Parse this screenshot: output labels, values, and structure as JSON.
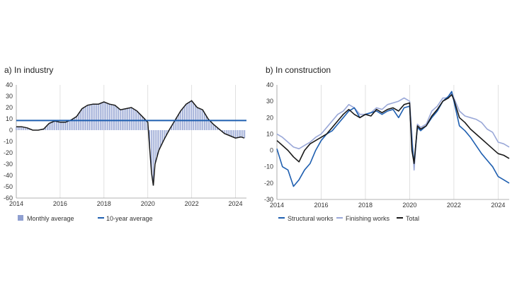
{
  "colors": {
    "bar_fill": "#8f9fd0",
    "avg_line": "#1f5fb0",
    "total_line": "#1a1a1a",
    "structural_line": "#1f5fb0",
    "finishing_line": "#9aa8d8",
    "axis": "#9a9a9a"
  },
  "chart_data": [
    {
      "type": "bar",
      "title": "a)  In industry",
      "xlim": [
        2014,
        2024.5
      ],
      "ylim": [
        -60,
        40
      ],
      "yticks": [
        "40",
        "30",
        "20",
        "10",
        "0",
        "-10",
        "-20",
        "-30",
        "-40",
        "-50",
        "-60"
      ],
      "xticks": [
        "2014",
        "2016",
        "2018",
        "2020",
        "2022",
        "2024"
      ],
      "grid": "vertical",
      "legend": [
        "Monthly average",
        "10-year average"
      ],
      "ten_year_average": 8.5,
      "series": [
        {
          "name": "Monthly average",
          "kind": "bars",
          "x": [
            2014.0,
            2014.25,
            2014.5,
            2014.75,
            2015.0,
            2015.25,
            2015.5,
            2015.75,
            2016.0,
            2016.25,
            2016.5,
            2016.75,
            2017.0,
            2017.25,
            2017.5,
            2017.75,
            2018.0,
            2018.25,
            2018.5,
            2018.75,
            2019.0,
            2019.25,
            2019.5,
            2019.75,
            2020.0,
            2020.08,
            2020.17,
            2020.25,
            2020.33,
            2020.5,
            2020.75,
            2021.0,
            2021.25,
            2021.5,
            2021.75,
            2022.0,
            2022.25,
            2022.5,
            2022.75,
            2023.0,
            2023.25,
            2023.5,
            2023.75,
            2024.0,
            2024.25,
            2024.4
          ],
          "y": [
            3,
            3,
            2,
            0,
            0,
            1,
            6,
            8,
            7,
            7,
            9,
            12,
            19,
            22,
            23,
            23,
            25,
            23,
            22,
            18,
            19,
            20,
            17,
            12,
            7,
            -15,
            -38,
            -49,
            -30,
            -18,
            -8,
            1,
            9,
            17,
            23,
            26,
            20,
            18,
            10,
            5,
            1,
            -3,
            -5,
            -7,
            -6,
            -7
          ]
        },
        {
          "name": "10-year average",
          "kind": "line",
          "x": [
            2014,
            2024.5
          ],
          "y": [
            8.5,
            8.5
          ]
        }
      ]
    },
    {
      "type": "line",
      "title": "b)  In construction",
      "xlim": [
        2014,
        2024.5
      ],
      "ylim": [
        -30,
        40
      ],
      "yticks": [
        "40",
        "30",
        "20",
        "10",
        "0",
        "-10",
        "-20",
        "-30"
      ],
      "xticks": [
        "2014",
        "2016",
        "2018",
        "2020",
        "2022",
        "2024"
      ],
      "grid": "vertical",
      "legend": [
        "Structural works",
        "Finishing works",
        "Total"
      ],
      "x": [
        2014.0,
        2014.25,
        2014.5,
        2014.75,
        2015.0,
        2015.25,
        2015.5,
        2015.75,
        2016.0,
        2016.25,
        2016.5,
        2016.75,
        2017.0,
        2017.25,
        2017.5,
        2017.75,
        2018.0,
        2018.25,
        2018.5,
        2018.75,
        2019.0,
        2019.25,
        2019.5,
        2019.75,
        2020.0,
        2020.1,
        2020.2,
        2020.35,
        2020.5,
        2020.75,
        2021.0,
        2021.25,
        2021.5,
        2021.75,
        2021.9,
        2022.0,
        2022.25,
        2022.5,
        2022.75,
        2023.0,
        2023.25,
        2023.5,
        2023.75,
        2024.0,
        2024.25,
        2024.5
      ],
      "series": [
        {
          "name": "Structural works",
          "y": [
            1,
            -10,
            -12,
            -22,
            -18,
            -12,
            -8,
            0,
            6,
            10,
            12,
            16,
            20,
            24,
            26,
            20,
            22,
            23,
            24,
            22,
            24,
            25,
            20,
            26,
            27,
            5,
            -8,
            14,
            12,
            15,
            20,
            24,
            30,
            33,
            36,
            30,
            15,
            12,
            8,
            3,
            -2,
            -6,
            -10,
            -16,
            -18,
            -20
          ]
        },
        {
          "name": "Finishing works",
          "y": [
            10,
            8,
            5,
            2,
            1,
            3,
            5,
            8,
            10,
            14,
            18,
            22,
            24,
            28,
            26,
            22,
            22,
            23,
            26,
            25,
            28,
            29,
            30,
            32,
            30,
            10,
            -12,
            16,
            14,
            16,
            24,
            27,
            32,
            32,
            35,
            32,
            24,
            21,
            20,
            19,
            17,
            13,
            11,
            5,
            4,
            2
          ]
        },
        {
          "name": "Total",
          "y": [
            6,
            3,
            0,
            -4,
            -7,
            0,
            4,
            6,
            8,
            10,
            14,
            18,
            22,
            25,
            22,
            20,
            22,
            21,
            25,
            23,
            25,
            26,
            24,
            28,
            29,
            0,
            -8,
            15,
            13,
            15,
            21,
            25,
            30,
            32,
            34,
            31,
            20,
            17,
            13,
            10,
            7,
            4,
            1,
            -2,
            -3,
            -5
          ]
        }
      ]
    }
  ]
}
